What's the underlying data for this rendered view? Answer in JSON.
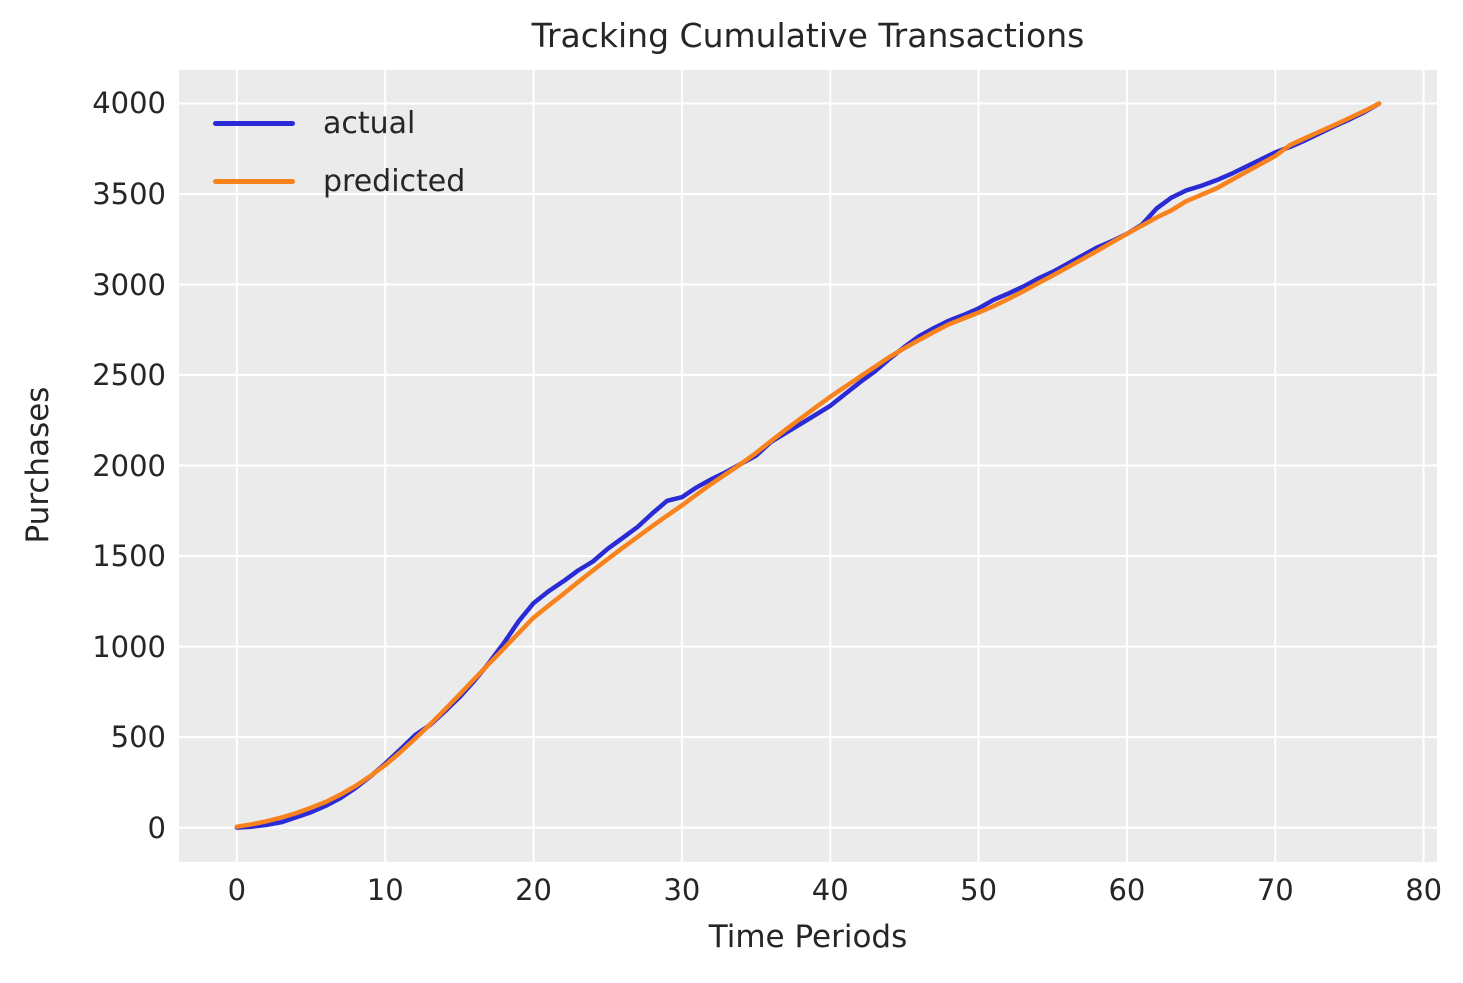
{
  "chart_data": {
    "type": "line",
    "title": "Tracking Cumulative Transactions",
    "xlabel": "Time Periods",
    "ylabel": "Purchases",
    "plot_background": "#ebebeb",
    "grid_color": "#ffffff",
    "text_color": "#262626",
    "grid": true,
    "legend": {
      "position": "upper left",
      "frame": false
    },
    "xlim": [
      -3.9,
      80.9
    ],
    "ylim": [
      -190,
      4185
    ],
    "xticks": [
      0,
      10,
      20,
      30,
      40,
      50,
      60,
      70,
      80
    ],
    "yticks": [
      0,
      500,
      1000,
      1500,
      2000,
      2500,
      3000,
      3500,
      4000
    ],
    "x": [
      0,
      1,
      2,
      3,
      4,
      5,
      6,
      7,
      8,
      9,
      10,
      11,
      12,
      13,
      14,
      15,
      16,
      17,
      18,
      19,
      20,
      21,
      22,
      23,
      24,
      25,
      26,
      27,
      28,
      29,
      30,
      31,
      32,
      33,
      34,
      35,
      36,
      37,
      38,
      39,
      40,
      41,
      42,
      43,
      44,
      45,
      46,
      47,
      48,
      49,
      50,
      51,
      52,
      53,
      54,
      55,
      56,
      57,
      58,
      59,
      60,
      61,
      62,
      63,
      64,
      65,
      66,
      67,
      68,
      69,
      70,
      71,
      72,
      73,
      74,
      75,
      76,
      77
    ],
    "series": [
      {
        "name": "actual",
        "color": "#2b2bd5",
        "line_width": 4.5,
        "values": [
          0,
          5,
          15,
          30,
          57,
          85,
          121,
          164,
          219,
          283,
          353,
          430,
          510,
          565,
          640,
          720,
          810,
          910,
          1020,
          1140,
          1240,
          1305,
          1360,
          1420,
          1470,
          1540,
          1600,
          1660,
          1735,
          1805,
          1825,
          1880,
          1925,
          1965,
          2010,
          2055,
          2130,
          2180,
          2230,
          2280,
          2330,
          2395,
          2460,
          2520,
          2590,
          2655,
          2715,
          2760,
          2800,
          2832,
          2868,
          2915,
          2950,
          2988,
          3032,
          3070,
          3115,
          3160,
          3205,
          3240,
          3280,
          3330,
          3420,
          3480,
          3520,
          3545,
          3575,
          3610,
          3650,
          3690,
          3730,
          3760,
          3796,
          3836,
          3875,
          3912,
          3952,
          4000
        ]
      },
      {
        "name": "predicted",
        "color": "#f8821c",
        "line_width": 4.5,
        "values": [
          5,
          18,
          35,
          56,
          80,
          110,
          142,
          183,
          230,
          285,
          345,
          415,
          490,
          568,
          650,
          734,
          820,
          905,
          990,
          1075,
          1160,
          1226,
          1290,
          1356,
          1420,
          1483,
          1545,
          1605,
          1665,
          1723,
          1780,
          1840,
          1900,
          1955,
          2010,
          2070,
          2135,
          2198,
          2260,
          2320,
          2380,
          2435,
          2490,
          2545,
          2600,
          2648,
          2694,
          2738,
          2780,
          2813,
          2845,
          2880,
          2920,
          2962,
          3006,
          3050,
          3095,
          3140,
          3186,
          3233,
          3280,
          3325,
          3370,
          3410,
          3460,
          3495,
          3530,
          3575,
          3620,
          3665,
          3710,
          3770,
          3808,
          3845,
          3882,
          3920,
          3958,
          4000
        ]
      }
    ]
  }
}
